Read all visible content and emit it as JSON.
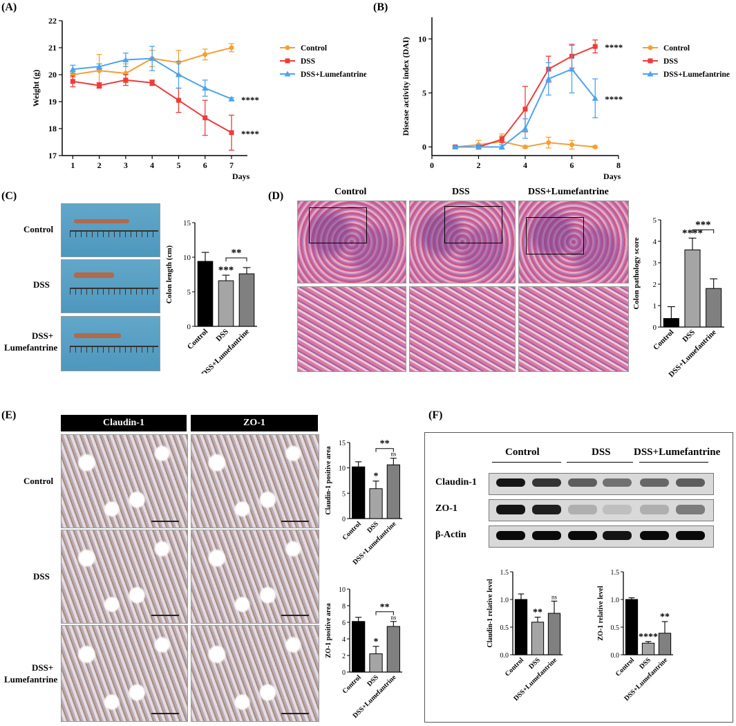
{
  "panels": {
    "A": "(A)",
    "B": "(B)",
    "C": "(C)",
    "D": "(D)",
    "E": "(E)",
    "F": "(F)"
  },
  "groups": [
    "Control",
    "DSS",
    "DSS+Lumefantrine"
  ],
  "colors": {
    "control": "#f5a033",
    "dss": "#ee3b3b",
    "lume": "#4aa3f0",
    "bar_black": "#000000",
    "bar_grey1": "#a5a5a5",
    "bar_grey2": "#808080"
  },
  "panelC": {
    "row_labels": [
      "Control",
      "DSS",
      "DSS+",
      "Lumefantrine"
    ]
  },
  "panelD": {
    "col_labels": [
      "Control",
      "DSS",
      "DSS+Lumefantrine"
    ]
  },
  "panelE": {
    "col_labels": [
      "Claudin-1",
      "ZO-1"
    ],
    "row_labels": [
      "Control",
      "DSS",
      "DSS+",
      "Lumefantrine"
    ]
  },
  "panelF": {
    "group_labels": [
      "Control",
      "DSS",
      "DSS+Lumefantrine"
    ],
    "blot_labels": [
      "Claudin-1",
      "ZO-1",
      "β-Actin"
    ]
  },
  "chart_data": [
    {
      "id": "A",
      "type": "line",
      "xlabel": "Days",
      "ylabel": "Weight (g)",
      "x": [
        1,
        2,
        3,
        4,
        5,
        6,
        7
      ],
      "xlim": [
        0.6,
        7.6
      ],
      "ylim": [
        17,
        22
      ],
      "xticks": [
        1,
        2,
        3,
        4,
        5,
        6,
        7
      ],
      "yticks": [
        17,
        18,
        19,
        20,
        21,
        22
      ],
      "series": [
        {
          "name": "Control",
          "values": [
            20.0,
            20.15,
            20.05,
            20.6,
            20.45,
            20.75,
            21.0
          ],
          "err": [
            0.1,
            0.6,
            0.35,
            0.3,
            0.45,
            0.2,
            0.15
          ]
        },
        {
          "name": "DSS",
          "values": [
            19.75,
            19.6,
            19.8,
            19.7,
            19.05,
            18.4,
            17.85
          ],
          "err": [
            0.2,
            0.1,
            0.2,
            0.1,
            0.45,
            0.65,
            0.65
          ]
        },
        {
          "name": "DSS+Lumefantrine",
          "values": [
            20.2,
            20.3,
            20.55,
            20.6,
            20.0,
            19.5,
            19.1
          ],
          "err": [
            0.15,
            0.1,
            0.25,
            0.45,
            0.5,
            0.3,
            0.05
          ]
        }
      ],
      "annotations": [
        {
          "series": "DSS+Lumefantrine",
          "text": "****"
        },
        {
          "series": "DSS",
          "text": "****"
        }
      ]
    },
    {
      "id": "B",
      "type": "line",
      "xlabel": "Days",
      "ylabel": "Disease activity index (DAI)",
      "x": [
        1,
        2,
        3,
        4,
        5,
        6,
        7
      ],
      "xlim": [
        0,
        8
      ],
      "ylim": [
        -0.8,
        12
      ],
      "xticks": [
        0,
        2,
        4,
        6,
        8
      ],
      "yticks": [
        0,
        5,
        10
      ],
      "series": [
        {
          "name": "Control",
          "values": [
            0,
            0.2,
            0.5,
            0,
            0.4,
            0.2,
            0
          ],
          "err": [
            0.1,
            0.4,
            0.7,
            0.1,
            0.5,
            0.4,
            0.1
          ]
        },
        {
          "name": "DSS",
          "values": [
            0,
            0,
            0.7,
            3.5,
            7.2,
            8.4,
            9.3
          ],
          "err": [
            0.1,
            0.2,
            0.3,
            2.1,
            1.2,
            1.1,
            0.6
          ]
        },
        {
          "name": "DSS+Lumefantrine",
          "values": [
            0,
            0,
            0,
            1.7,
            6.3,
            7.2,
            4.5
          ],
          "err": [
            0.1,
            0.2,
            0.2,
            0.9,
            1.5,
            2.2,
            1.8
          ]
        }
      ],
      "annotations": [
        {
          "series": "DSS",
          "text": "****"
        },
        {
          "series": "DSS+Lumefantrine",
          "text": "****"
        }
      ]
    },
    {
      "id": "C",
      "type": "bar",
      "ylabel": "Colon length (cm)",
      "ylim": [
        0,
        15
      ],
      "yticks": [
        0,
        5,
        10,
        15
      ],
      "categories": [
        "Control",
        "DSS",
        "DSS+Lumefantrine"
      ],
      "values": [
        9.4,
        6.6,
        7.6
      ],
      "err": [
        1.3,
        0.8,
        0.9
      ],
      "stars": [
        "",
        "***",
        ""
      ],
      "bracket": {
        "from": 1,
        "to": 2,
        "text": "**"
      }
    },
    {
      "id": "D",
      "type": "bar",
      "ylabel": "Colon pathology score",
      "ylim": [
        0,
        5
      ],
      "yticks": [
        0,
        1,
        2,
        3,
        4,
        5
      ],
      "categories": [
        "Control",
        "DSS",
        "DSS+Lumefantrine"
      ],
      "values": [
        0.4,
        3.6,
        1.8
      ],
      "err": [
        0.55,
        0.55,
        0.45
      ],
      "stars": [
        "",
        "****",
        ""
      ],
      "bracket": {
        "from": 1,
        "to": 2,
        "text": "***"
      }
    },
    {
      "id": "E1",
      "type": "bar",
      "ylabel": "Claudin-1 positive area",
      "ylim": [
        0,
        15
      ],
      "yticks": [
        0,
        5,
        10,
        15
      ],
      "categories": [
        "Control",
        "DSS",
        "DSS+Lumefantrine"
      ],
      "values": [
        10.2,
        5.9,
        10.6
      ],
      "err": [
        1.0,
        1.5,
        1.3
      ],
      "stars": [
        "",
        "*",
        "ns"
      ],
      "bracket": {
        "from": 1,
        "to": 2,
        "text": "**"
      }
    },
    {
      "id": "E2",
      "type": "bar",
      "ylabel": "ZO-1 positive area",
      "ylim": [
        0,
        10
      ],
      "yticks": [
        0,
        2,
        4,
        6,
        8,
        10
      ],
      "categories": [
        "Control",
        "DSS",
        "DSS+Lumefantrine"
      ],
      "values": [
        6.1,
        2.2,
        5.5
      ],
      "err": [
        0.5,
        0.9,
        0.6
      ],
      "stars": [
        "",
        "*",
        "ns"
      ],
      "bracket": {
        "from": 1,
        "to": 2,
        "text": "**"
      }
    },
    {
      "id": "F1",
      "type": "bar",
      "ylabel": "Claudin-1 relative level",
      "ylim": [
        0,
        1.5
      ],
      "yticks": [
        0.0,
        0.5,
        1.0,
        1.5
      ],
      "categories": [
        "Control",
        "DSS",
        "DSS+Lumefantrine"
      ],
      "values": [
        1.0,
        0.59,
        0.75
      ],
      "err": [
        0.1,
        0.09,
        0.22
      ],
      "stars": [
        "",
        "**",
        "ns"
      ]
    },
    {
      "id": "F2",
      "type": "bar",
      "ylabel": "ZO-1 relative level",
      "ylim": [
        0,
        1.5
      ],
      "yticks": [
        0.0,
        0.5,
        1.0,
        1.5
      ],
      "categories": [
        "Control",
        "DSS",
        "DSS+Lumefantrine"
      ],
      "values": [
        1.0,
        0.21,
        0.39
      ],
      "err": [
        0.03,
        0.03,
        0.21
      ],
      "stars": [
        "",
        "****",
        "**"
      ]
    }
  ]
}
